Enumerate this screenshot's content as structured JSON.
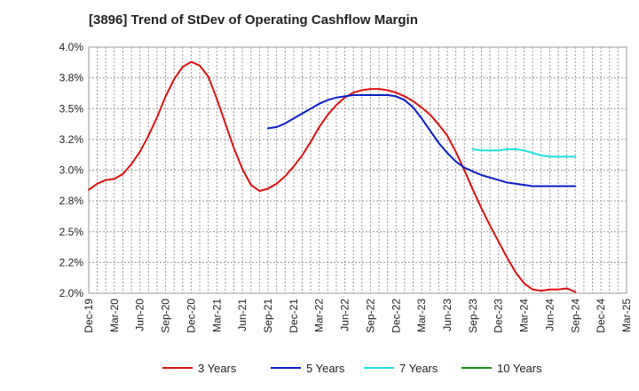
{
  "chart_data": {
    "type": "line",
    "title": "[3896]  Trend of StDev of Operating Cashflow Margin",
    "ylim": [
      2.0,
      4.0
    ],
    "y_ticks": [
      "4.0%",
      "3.8%",
      "3.5%",
      "3.2%",
      "3.0%",
      "2.8%",
      "2.5%",
      "2.2%",
      "2.0%"
    ],
    "y_tick_values": [
      4.0,
      3.75,
      3.5,
      3.25,
      3.0,
      2.75,
      2.5,
      2.25,
      2.0
    ],
    "x_ticks": [
      "Dec-19",
      "Mar-20",
      "Jun-20",
      "Sep-20",
      "Dec-20",
      "Mar-21",
      "Jun-21",
      "Sep-21",
      "Dec-21",
      "Mar-22",
      "Jun-22",
      "Sep-22",
      "Dec-22",
      "Mar-23",
      "Jun-23",
      "Sep-23",
      "Dec-23",
      "Mar-24",
      "Jun-24",
      "Sep-24",
      "Dec-24",
      "Mar-25"
    ],
    "grid": true,
    "legend_position": "bottom",
    "series": [
      {
        "name": "3 Years",
        "color": "#dd1111",
        "x": [
          "Dec-19",
          "Jan-20",
          "Feb-20",
          "Mar-20",
          "Apr-20",
          "May-20",
          "Jun-20",
          "Jul-20",
          "Aug-20",
          "Sep-20",
          "Oct-20",
          "Nov-20",
          "Dec-20",
          "Jan-21",
          "Feb-21",
          "Mar-21",
          "Apr-21",
          "May-21",
          "Jun-21",
          "Jul-21",
          "Aug-21",
          "Sep-21",
          "Oct-21",
          "Nov-21",
          "Dec-21",
          "Jan-22",
          "Feb-22",
          "Mar-22",
          "Apr-22",
          "May-22",
          "Jun-22",
          "Jul-22",
          "Aug-22",
          "Sep-22",
          "Oct-22",
          "Nov-22",
          "Dec-22",
          "Jan-23",
          "Feb-23",
          "Mar-23",
          "Apr-23",
          "May-23",
          "Jun-23",
          "Jul-23",
          "Aug-23",
          "Sep-23",
          "Oct-23",
          "Nov-23",
          "Dec-23",
          "Jan-24",
          "Feb-24",
          "Mar-24",
          "Apr-24",
          "May-24",
          "Jun-24",
          "Jul-24",
          "Aug-24",
          "Sep-24"
        ],
        "values": [
          2.84,
          2.89,
          2.92,
          2.93,
          2.97,
          3.05,
          3.15,
          3.28,
          3.43,
          3.6,
          3.74,
          3.84,
          3.88,
          3.85,
          3.76,
          3.58,
          3.38,
          3.18,
          3.01,
          2.88,
          2.83,
          2.85,
          2.89,
          2.95,
          3.03,
          3.12,
          3.23,
          3.35,
          3.45,
          3.53,
          3.59,
          3.63,
          3.65,
          3.66,
          3.66,
          3.65,
          3.63,
          3.6,
          3.56,
          3.51,
          3.45,
          3.37,
          3.28,
          3.15,
          3.0,
          2.84,
          2.69,
          2.55,
          2.42,
          2.29,
          2.17,
          2.08,
          2.03,
          2.02,
          2.03,
          2.03,
          2.04,
          2.01
        ]
      },
      {
        "name": "5 Years",
        "color": "#0a1ec8",
        "x": [
          "Sep-21",
          "Oct-21",
          "Nov-21",
          "Dec-21",
          "Jan-22",
          "Feb-22",
          "Mar-22",
          "Apr-22",
          "May-22",
          "Jun-22",
          "Jul-22",
          "Aug-22",
          "Sep-22",
          "Oct-22",
          "Nov-22",
          "Dec-22",
          "Jan-23",
          "Feb-23",
          "Mar-23",
          "Apr-23",
          "May-23",
          "Jun-23",
          "Jul-23",
          "Aug-23",
          "Sep-23",
          "Oct-23",
          "Nov-23",
          "Dec-23",
          "Jan-24",
          "Feb-24",
          "Mar-24",
          "Apr-24",
          "May-24",
          "Jun-24",
          "Jul-24",
          "Aug-24",
          "Sep-24"
        ],
        "values": [
          3.34,
          3.35,
          3.38,
          3.42,
          3.46,
          3.5,
          3.54,
          3.57,
          3.59,
          3.6,
          3.61,
          3.61,
          3.61,
          3.61,
          3.61,
          3.6,
          3.57,
          3.51,
          3.42,
          3.32,
          3.22,
          3.14,
          3.07,
          3.02,
          2.99,
          2.96,
          2.94,
          2.92,
          2.9,
          2.89,
          2.88,
          2.87,
          2.87,
          2.87,
          2.87,
          2.87,
          2.87
        ]
      },
      {
        "name": "7 Years",
        "color": "#22e0e0",
        "x": [
          "Sep-23",
          "Oct-23",
          "Nov-23",
          "Dec-23",
          "Jan-24",
          "Feb-24",
          "Mar-24",
          "Apr-24",
          "May-24",
          "Jun-24",
          "Jul-24",
          "Aug-24",
          "Sep-24"
        ],
        "values": [
          3.17,
          3.16,
          3.16,
          3.16,
          3.17,
          3.17,
          3.16,
          3.14,
          3.12,
          3.11,
          3.11,
          3.11,
          3.11
        ]
      },
      {
        "name": "10 Years",
        "color": "#1a8c1a",
        "x": [],
        "values": []
      }
    ]
  }
}
